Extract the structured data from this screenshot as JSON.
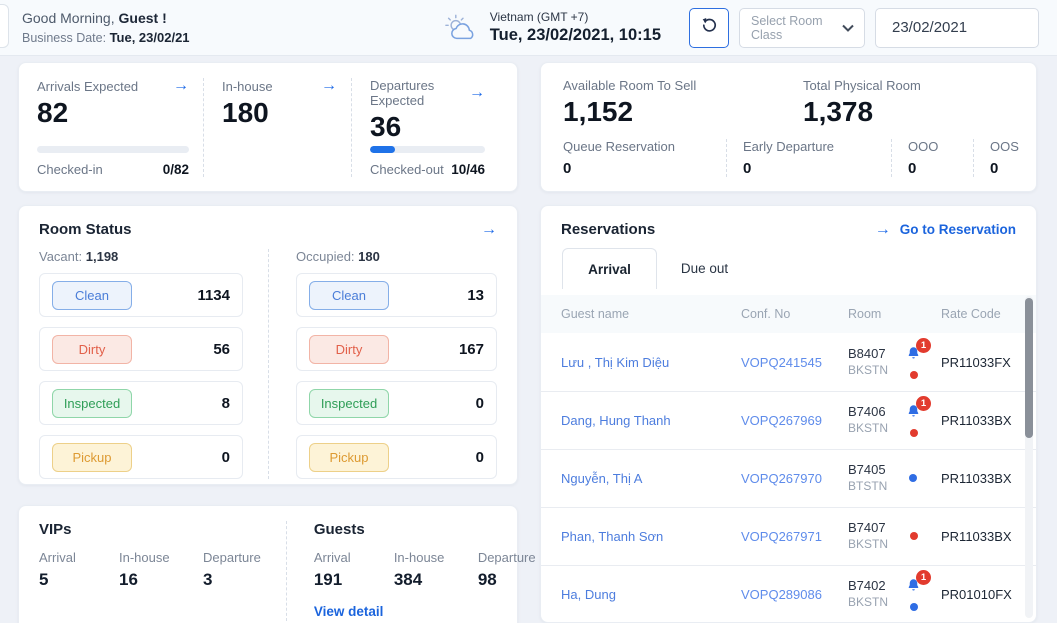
{
  "colors": {
    "red": "#e23b2e",
    "blue": "#2f6de4",
    "accent": "#1f6be8"
  },
  "header": {
    "greeting_prefix": "Good Morning,",
    "greeting_name": "Guest !",
    "business_date_label": "Business Date:",
    "business_date_value": "Tue, 23/02/21",
    "timezone": "Vietnam (GMT +7)",
    "datetime": "Tue, 23/02/2021, 10:15",
    "room_class_placeholder": "Select Room Class",
    "date_value": "23/02/2021"
  },
  "kpis": [
    {
      "label": "Arrivals Expected",
      "value": "82",
      "sub_label": "Checked-in",
      "sub_value": "0/82",
      "progress_pct": 0
    },
    {
      "label": "In-house",
      "value": "180"
    },
    {
      "label": "Departures Expected",
      "value": "36",
      "sub_label": "Checked-out",
      "sub_value": "10/46",
      "progress_pct": 22
    }
  ],
  "availability": {
    "primary": [
      {
        "label": "Available Room To Sell",
        "value": "1,152"
      },
      {
        "label": "Total Physical Room",
        "value": "1,378"
      }
    ],
    "secondary": [
      {
        "label": "Queue Reservation",
        "value": "0"
      },
      {
        "label": "Early Departure",
        "value": "0"
      },
      {
        "label": "OOO",
        "value": "0"
      },
      {
        "label": "OOS",
        "value": "0"
      }
    ]
  },
  "room_status": {
    "title": "Room Status",
    "groups": [
      {
        "label": "Vacant:",
        "total": "1,198",
        "rows": [
          {
            "label": "Clean",
            "count": "1134",
            "status": "clean"
          },
          {
            "label": "Dirty",
            "count": "56",
            "status": "dirty"
          },
          {
            "label": "Inspected",
            "count": "8",
            "status": "inspected"
          },
          {
            "label": "Pickup",
            "count": "0",
            "status": "pickup"
          }
        ]
      },
      {
        "label": "Occupied:",
        "total": "180",
        "rows": [
          {
            "label": "Clean",
            "count": "13",
            "status": "clean"
          },
          {
            "label": "Dirty",
            "count": "167",
            "status": "dirty"
          },
          {
            "label": "Inspected",
            "count": "0",
            "status": "inspected"
          },
          {
            "label": "Pickup",
            "count": "0",
            "status": "pickup"
          }
        ]
      }
    ]
  },
  "vips": {
    "title": "VIPs",
    "stats": [
      {
        "label": "Arrival",
        "value": "5"
      },
      {
        "label": "In-house",
        "value": "16"
      },
      {
        "label": "Departure",
        "value": "3"
      }
    ]
  },
  "guests": {
    "title": "Guests",
    "stats": [
      {
        "label": "Arrival",
        "value": "191"
      },
      {
        "label": "In-house",
        "value": "384"
      },
      {
        "label": "Departure",
        "value": "98"
      }
    ],
    "view_detail_label": "View detail"
  },
  "reservations": {
    "title": "Reservations",
    "goto_label": "Go to Reservation",
    "tabs": [
      {
        "label": "Arrival"
      },
      {
        "label": "Due out"
      }
    ],
    "columns": [
      "Guest name",
      "Conf. No",
      "Room",
      "Rate Code"
    ],
    "rows": [
      {
        "guest": "Lưu , Thị Kim Diệu",
        "conf_no": "VOPQ241545",
        "room": "B8407",
        "room_type": "BKSTN",
        "has_bell": true,
        "bell_count": "1",
        "dot": "red",
        "rate_code": "PR11033FX"
      },
      {
        "guest": "Dang, Hung Thanh",
        "conf_no": "VOPQ267969",
        "room": "B7406",
        "room_type": "BKSTN",
        "has_bell": true,
        "bell_count": "1",
        "dot": "red",
        "rate_code": "PR11033BX"
      },
      {
        "guest": "Nguyễn, Thị A",
        "conf_no": "VOPQ267970",
        "room": "B7405",
        "room_type": "BTSTN",
        "has_bell": false,
        "bell_count": "",
        "dot": "blue",
        "rate_code": "PR11033BX"
      },
      {
        "guest": "Phan, Thanh Sơn",
        "conf_no": "VOPQ267971",
        "room": "B7407",
        "room_type": "BKSTN",
        "has_bell": false,
        "bell_count": "",
        "dot": "red",
        "rate_code": "PR11033BX"
      },
      {
        "guest": "Ha, Dung",
        "conf_no": "VOPQ289086",
        "room": "B7402",
        "room_type": "BKSTN",
        "has_bell": true,
        "bell_count": "1",
        "dot": "blue",
        "rate_code": "PR01010FX"
      }
    ]
  }
}
